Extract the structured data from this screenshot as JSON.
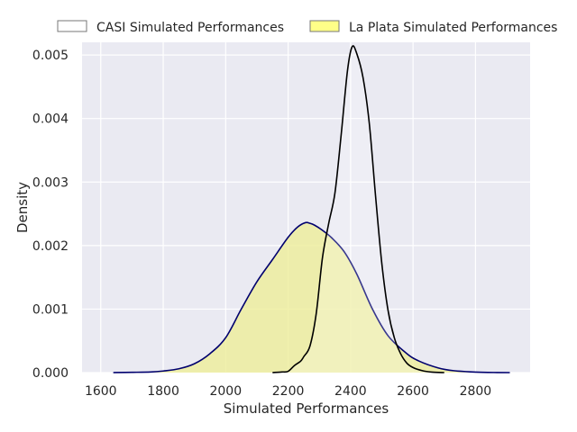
{
  "chart_data": {
    "type": "area",
    "title": "",
    "xlabel": "Simulated Performances",
    "ylabel": "Density",
    "xlim": [
      1540,
      2975
    ],
    "ylim": [
      0,
      0.0052
    ],
    "xticks": [
      1600,
      1800,
      2000,
      2200,
      2400,
      2600,
      2800
    ],
    "xtick_labels": [
      "1600",
      "1800",
      "2000",
      "2200",
      "2400",
      "2600",
      "2800"
    ],
    "yticks": [
      0,
      0.001,
      0.002,
      0.003,
      0.004,
      0.005
    ],
    "ytick_labels": [
      "0.000",
      "0.001",
      "0.002",
      "0.003",
      "0.004",
      "0.005"
    ],
    "grid": true,
    "legend": {
      "placement": "top",
      "entries": [
        "CASI Simulated Performances",
        "La Plata Simulated Performances"
      ]
    },
    "series": [
      {
        "name": "La Plata Simulated Performances",
        "style": "filled",
        "fill_color": "#eeee99",
        "line_color": "#00006e",
        "x": [
          1640,
          1700,
          1760,
          1800,
          1850,
          1900,
          1950,
          2000,
          2050,
          2100,
          2150,
          2200,
          2230,
          2255,
          2270,
          2285,
          2310,
          2340,
          2380,
          2420,
          2470,
          2520,
          2580,
          2620,
          2680,
          2730,
          2800,
          2870,
          2910
        ],
        "y": [
          0,
          4e-06,
          1e-05,
          2.5e-05,
          6e-05,
          0.00014,
          0.0003,
          0.00055,
          0.001,
          0.00143,
          0.00178,
          0.00213,
          0.00229,
          0.00236,
          0.00235,
          0.00232,
          0.00224,
          0.00212,
          0.0019,
          0.00155,
          0.001,
          0.00058,
          0.0003,
          0.00018,
          7.5e-05,
          3e-05,
          8e-06,
          1e-06,
          0
        ]
      },
      {
        "name": "CASI Simulated Performances",
        "style": "line",
        "fill_color": "#ffffff",
        "line_color": "#000000",
        "x": [
          2150,
          2180,
          2200,
          2220,
          2240,
          2250,
          2270,
          2290,
          2310,
          2330,
          2350,
          2370,
          2390,
          2405,
          2420,
          2440,
          2460,
          2480,
          2500,
          2520,
          2540,
          2560,
          2580,
          2600,
          2630,
          2660,
          2700
        ],
        "y": [
          0,
          1e-05,
          2e-05,
          0.00011,
          0.00018,
          0.00025,
          0.00042,
          0.00093,
          0.00181,
          0.00235,
          0.00283,
          0.00375,
          0.00475,
          0.00513,
          0.00502,
          0.00464,
          0.00392,
          0.00278,
          0.00172,
          0.00098,
          0.00055,
          0.0003,
          0.00015,
          8e-05,
          3e-05,
          8e-06,
          0
        ]
      }
    ]
  }
}
